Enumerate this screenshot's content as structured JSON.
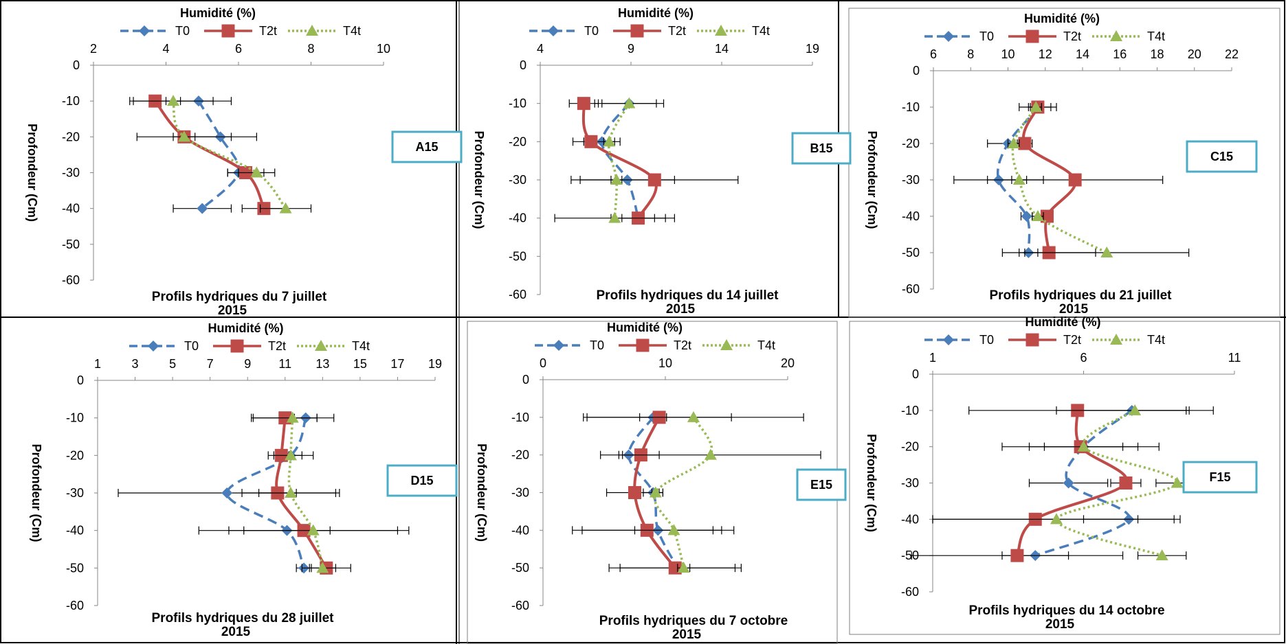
{
  "colors": {
    "T0": "#4a7ebb",
    "T2t": "#be4b48",
    "T4t": "#98b954",
    "label_box": "#4bacc6",
    "error_bar": "#000000"
  },
  "chart_data": [
    {
      "type": "line",
      "panel_label": "A15",
      "title_line1": "Profils hydriques du 7 juillet",
      "title_line2": "2015",
      "xlabel": "Humidité (%)",
      "ylabel": "Profondeur (Cm)",
      "xlim": [
        2,
        10
      ],
      "xticks": [
        2,
        4,
        6,
        8,
        10
      ],
      "ylim": [
        -60,
        0
      ],
      "yticks": [
        0,
        -10,
        -20,
        -30,
        -40,
        -50,
        -60
      ],
      "legend_position": "top",
      "series": [
        {
          "name": "T0",
          "style": "dashed",
          "marker": "diamond",
          "points": [
            {
              "x": 4.9,
              "y": -10,
              "err": 0.9
            },
            {
              "x": 5.5,
              "y": -20,
              "err": 1.0
            },
            {
              "x": 6.0,
              "y": -30,
              "err": 0.3
            },
            {
              "x": 5.0,
              "y": -40,
              "err": 0.8
            }
          ]
        },
        {
          "name": "T2t",
          "style": "solid",
          "marker": "square",
          "points": [
            {
              "x": 3.7,
              "y": -10,
              "err": 0.7
            },
            {
              "x": 4.5,
              "y": -20,
              "err": 1.3
            },
            {
              "x": 6.2,
              "y": -30,
              "err": 0.5
            },
            {
              "x": 6.7,
              "y": -40,
              "err": 0.6
            }
          ]
        },
        {
          "name": "T4t",
          "style": "dotted",
          "marker": "triangle",
          "points": [
            {
              "x": 4.2,
              "y": -10,
              "err": 1.1
            },
            {
              "x": 4.5,
              "y": -20,
              "err": 0.3
            },
            {
              "x": 6.5,
              "y": -30,
              "err": 0.5
            },
            {
              "x": 7.3,
              "y": -40,
              "err": 0.7
            }
          ]
        }
      ]
    },
    {
      "type": "line",
      "panel_label": "B15",
      "title_line1": "Profils hydriques du 14 juillet",
      "title_line2": "2015",
      "xlabel": "Humidité (%)",
      "ylabel": "Profondeur (Cm)",
      "xlim": [
        4,
        19
      ],
      "xticks": [
        4,
        9,
        14,
        19
      ],
      "ylim": [
        -60,
        0
      ],
      "yticks": [
        0,
        -10,
        -20,
        -30,
        -40,
        -50,
        -60
      ],
      "legend_position": "top",
      "series": [
        {
          "name": "T0",
          "style": "dashed",
          "marker": "diamond",
          "points": [
            {
              "x": 8.9,
              "y": -10,
              "err": 1.5
            },
            {
              "x": 7.4,
              "y": -20,
              "err": 1.0
            },
            {
              "x": 8.8,
              "y": -30,
              "err": 2.6
            },
            {
              "x": 9.4,
              "y": -40,
              "err": 0.9
            }
          ]
        },
        {
          "name": "T2t",
          "style": "solid",
          "marker": "square",
          "points": [
            {
              "x": 6.4,
              "y": -10,
              "err": 0.8
            },
            {
              "x": 6.8,
              "y": -20,
              "err": 1.0
            },
            {
              "x": 10.3,
              "y": -30,
              "err": 4.6
            },
            {
              "x": 9.4,
              "y": -40,
              "err": 1.5
            }
          ]
        },
        {
          "name": "T4t",
          "style": "dotted",
          "marker": "triangle",
          "points": [
            {
              "x": 8.9,
              "y": -10,
              "err": 1.9
            },
            {
              "x": 7.8,
              "y": -20,
              "err": 0.3
            },
            {
              "x": 8.2,
              "y": -30,
              "err": 0.3
            },
            {
              "x": 8.1,
              "y": -40,
              "err": 3.3
            }
          ]
        }
      ]
    },
    {
      "type": "line",
      "panel_label": "C15",
      "title_line1": "Profils hydriques du 21 juillet",
      "title_line2": "2015",
      "xlabel": "Humidité (%)",
      "ylabel": "Profondeur (Cm)",
      "xlim": [
        6,
        22
      ],
      "xticks": [
        6,
        8,
        10,
        12,
        14,
        16,
        18,
        20,
        22
      ],
      "ylim": [
        -60,
        0
      ],
      "yticks": [
        0,
        -10,
        -20,
        -30,
        -40,
        -50,
        -60
      ],
      "legend_position": "top",
      "series": [
        {
          "name": "T0",
          "style": "dashed",
          "marker": "diamond",
          "points": [
            {
              "x": 11.7,
              "y": -10,
              "err": 0.6
            },
            {
              "x": 10.0,
              "y": -20,
              "err": 1.1
            },
            {
              "x": 9.5,
              "y": -30,
              "err": 2.4
            },
            {
              "x": 11.0,
              "y": -40,
              "err": 0.3
            },
            {
              "x": 11.1,
              "y": -50,
              "err": 0.5
            }
          ]
        },
        {
          "name": "T2t",
          "style": "solid",
          "marker": "square",
          "points": [
            {
              "x": 11.6,
              "y": -10,
              "err": 1.0
            },
            {
              "x": 10.9,
              "y": -20,
              "err": 0.4
            },
            {
              "x": 13.6,
              "y": -30,
              "err": 4.7
            },
            {
              "x": 12.1,
              "y": -40,
              "err": 0.3
            },
            {
              "x": 12.2,
              "y": -50,
              "err": 2.5
            }
          ]
        },
        {
          "name": "T4t",
          "style": "dotted",
          "marker": "triangle",
          "points": [
            {
              "x": 11.5,
              "y": -10,
              "err": 0.3
            },
            {
              "x": 10.3,
              "y": -20,
              "err": 0.3
            },
            {
              "x": 10.6,
              "y": -30,
              "err": 0.4
            },
            {
              "x": 11.6,
              "y": -40,
              "err": 0.3
            },
            {
              "x": 15.3,
              "y": -50,
              "err": 4.4
            }
          ]
        }
      ]
    },
    {
      "type": "line",
      "panel_label": "D15",
      "title_line1": "Profils hydriques du 28 juillet",
      "title_line2": "2015",
      "xlabel": "Humidité (%)",
      "ylabel": "Profondeur (Cm)",
      "xlim": [
        1,
        19
      ],
      "xticks": [
        1,
        3,
        5,
        7,
        9,
        11,
        13,
        15,
        17,
        19
      ],
      "ylim": [
        -60,
        0
      ],
      "yticks": [
        0,
        -10,
        -20,
        -30,
        -40,
        -50,
        -60
      ],
      "legend_position": "top",
      "series": [
        {
          "name": "T0",
          "style": "dashed",
          "marker": "diamond",
          "points": [
            {
              "x": 12.1,
              "y": -10,
              "err": 0.6
            },
            {
              "x": 11.3,
              "y": -20,
              "err": 0.6
            },
            {
              "x": 7.9,
              "y": -30,
              "err": 5.8
            },
            {
              "x": 11.1,
              "y": -40,
              "err": 2.3
            },
            {
              "x": 12.0,
              "y": -50,
              "err": 0.4
            }
          ]
        },
        {
          "name": "T2t",
          "style": "solid",
          "marker": "square",
          "points": [
            {
              "x": 11.0,
              "y": -10,
              "err": 1.7
            },
            {
              "x": 10.8,
              "y": -20,
              "err": 0.4
            },
            {
              "x": 10.6,
              "y": -30,
              "err": 1.0
            },
            {
              "x": 12.0,
              "y": -40,
              "err": 5.6
            },
            {
              "x": 13.2,
              "y": -50,
              "err": 1.3
            }
          ]
        },
        {
          "name": "T4t",
          "style": "dotted",
          "marker": "triangle",
          "points": [
            {
              "x": 11.4,
              "y": -10,
              "err": 2.2
            },
            {
              "x": 11.3,
              "y": -20,
              "err": 1.2
            },
            {
              "x": 11.3,
              "y": -30,
              "err": 2.6
            },
            {
              "x": 12.5,
              "y": -40,
              "err": 4.5
            },
            {
              "x": 13.0,
              "y": -50,
              "err": 0.7
            }
          ]
        }
      ]
    },
    {
      "type": "line",
      "panel_label": "E15",
      "title_line1": "Profils hydriques du 7 octobre",
      "title_line2": "2015",
      "xlabel": "Humidité (%)",
      "ylabel": "Profondeur (Cm)",
      "xlim": [
        0,
        20
      ],
      "xticks": [
        0,
        10,
        20
      ],
      "ylim": [
        -60,
        0
      ],
      "yticks": [
        0,
        -10,
        -20,
        -30,
        -40,
        -50,
        -60
      ],
      "legend_position": "top",
      "series": [
        {
          "name": "T0",
          "style": "dashed",
          "marker": "diamond",
          "points": [
            {
              "x": 9.0,
              "y": -10,
              "err": 1.1
            },
            {
              "x": 7.0,
              "y": -20,
              "err": 0.8
            },
            {
              "x": 9.0,
              "y": -30,
              "err": 0.8
            },
            {
              "x": 9.4,
              "y": -40,
              "err": 6.2
            },
            {
              "x": 11.0,
              "y": -50,
              "err": 4.7
            }
          ]
        },
        {
          "name": "T2t",
          "style": "solid",
          "marker": "square",
          "points": [
            {
              "x": 9.5,
              "y": -10,
              "err": 5.9
            },
            {
              "x": 8.0,
              "y": -20,
              "err": 1.5
            },
            {
              "x": 7.5,
              "y": -30,
              "err": 2.3
            },
            {
              "x": 8.5,
              "y": -40,
              "err": 6.1
            },
            {
              "x": 10.8,
              "y": -50,
              "err": 5.4
            }
          ]
        },
        {
          "name": "T4t",
          "style": "dotted",
          "marker": "triangle",
          "points": [
            {
              "x": 12.3,
              "y": -10,
              "err": 9.0
            },
            {
              "x": 13.7,
              "y": -20,
              "err": 9.0
            },
            {
              "x": 9.2,
              "y": -30,
              "err": 0.3
            },
            {
              "x": 10.7,
              "y": -40,
              "err": 3.2
            },
            {
              "x": 11.5,
              "y": -50,
              "err": 0.5
            }
          ]
        }
      ]
    },
    {
      "type": "line",
      "panel_label": "F15",
      "title_line1": "Profils hydriques du 14 octobre",
      "title_line2": "2015",
      "xlabel": "Humidité (%)",
      "ylabel": "Profondeur (Cm)",
      "xlim": [
        1,
        11
      ],
      "xticks": [
        1,
        6,
        11
      ],
      "ylim": [
        -60,
        0
      ],
      "yticks": [
        0,
        -10,
        -20,
        -30,
        -40,
        -50,
        -60
      ],
      "legend_position": "top",
      "series": [
        {
          "name": "T0",
          "style": "dashed",
          "marker": "diamond",
          "points": [
            {
              "x": 7.6,
              "y": -10,
              "err": 1.9
            },
            {
              "x": 6.0,
              "y": -20,
              "err": 1.8
            },
            {
              "x": 5.5,
              "y": -30,
              "err": 1.3
            },
            {
              "x": 7.5,
              "y": -40,
              "err": 1.5
            },
            {
              "x": 4.4,
              "y": -50,
              "err": 1.1
            }
          ]
        },
        {
          "name": "T2t",
          "style": "solid",
          "marker": "square",
          "points": [
            {
              "x": 5.8,
              "y": -10,
              "err": 3.6
            },
            {
              "x": 5.9,
              "y": -20,
              "err": 2.6
            },
            {
              "x": 7.4,
              "y": -30,
              "err": 0.5
            },
            {
              "x": 4.4,
              "y": -40,
              "err": 3.4
            },
            {
              "x": 3.8,
              "y": -50,
              "err": 3.5
            }
          ]
        },
        {
          "name": "T4t",
          "style": "dotted",
          "marker": "triangle",
          "points": [
            {
              "x": 7.7,
              "y": -10,
              "err": 2.6
            },
            {
              "x": 6.0,
              "y": -20,
              "err": 1.3
            },
            {
              "x": 9.1,
              "y": -30,
              "err": 0.7
            },
            {
              "x": 5.1,
              "y": -40,
              "err": 4.1
            },
            {
              "x": 8.6,
              "y": -50,
              "err": 0.8
            }
          ]
        }
      ]
    }
  ]
}
